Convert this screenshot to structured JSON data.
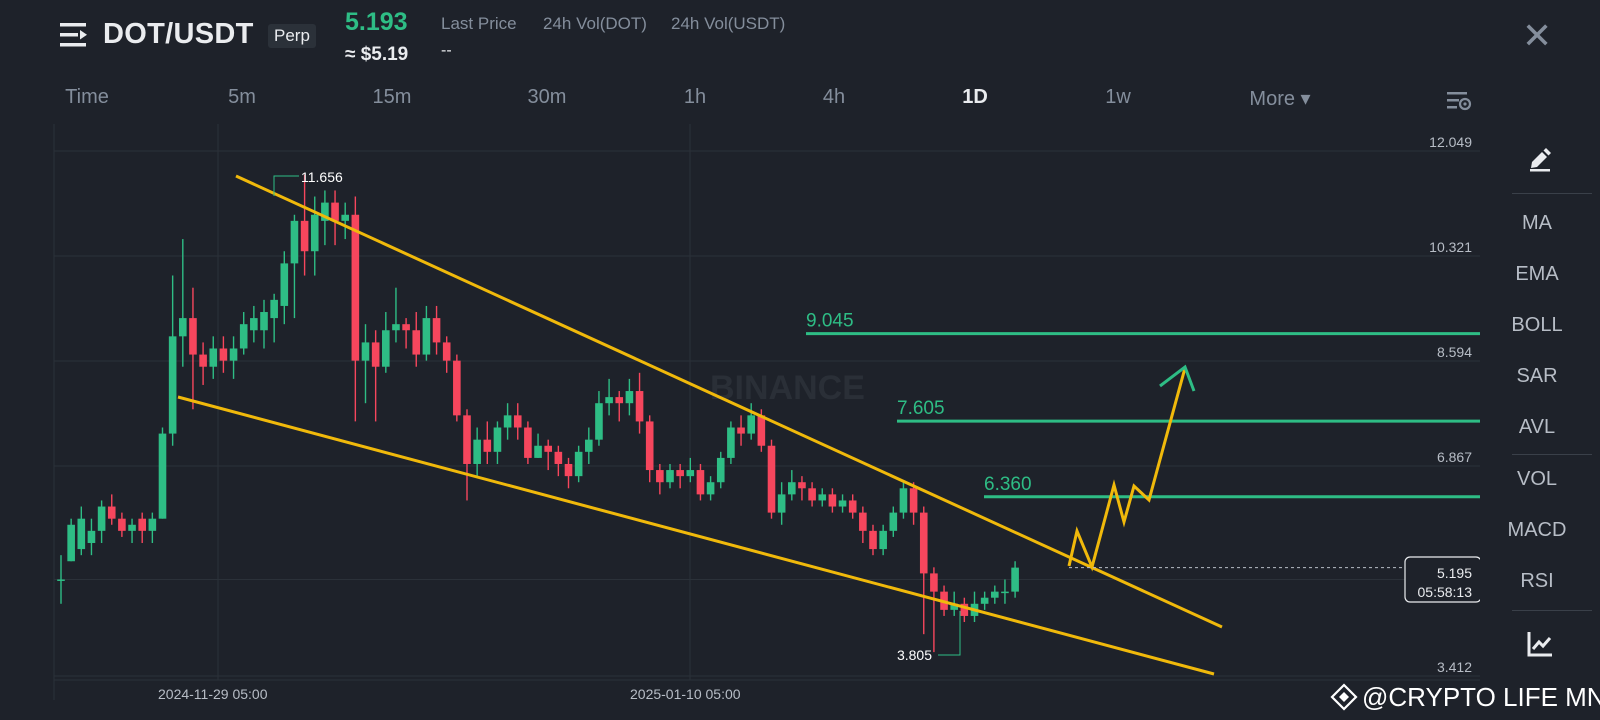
{
  "header": {
    "pair": "DOT/USDT",
    "contract": "Perp",
    "last_price": "5.193",
    "price_usd": "≈ $5.19",
    "stat_labels": [
      "Last Price",
      "24h Vol(DOT)",
      "24h Vol(USDT)"
    ],
    "stat_value": "--",
    "close_label": "✕"
  },
  "tabs": [
    {
      "label": "Time",
      "active": false
    },
    {
      "label": "5m",
      "active": false
    },
    {
      "label": "15m",
      "active": false
    },
    {
      "label": "30m",
      "active": false
    },
    {
      "label": "1h",
      "active": false
    },
    {
      "label": "4h",
      "active": false
    },
    {
      "label": "1D",
      "active": true
    },
    {
      "label": "1w",
      "active": false
    },
    {
      "label": "More ▾",
      "active": false
    }
  ],
  "sidebar": {
    "items": [
      "MA",
      "EMA",
      "BOLL",
      "SAR",
      "AVL",
      "VOL",
      "MACD",
      "RSI"
    ]
  },
  "chart": {
    "watermark": "BINANCE",
    "price_axis": [
      "12.049",
      "10.321",
      "8.594",
      "6.867",
      "3.412"
    ],
    "time_axis": [
      "2024-11-29 05:00",
      "2025-01-10 05:00"
    ],
    "high_label": "11.656",
    "low_label": "3.805",
    "current_price": "5.195",
    "countdown": "05:58:13",
    "levels": [
      "9.045",
      "7.605",
      "6.360"
    ],
    "colors": {
      "up": "#2ebd85",
      "down": "#f6465d",
      "trend": "#f0b90b",
      "level": "#2ebd85"
    }
  },
  "chart_data": {
    "type": "candlestick",
    "title": "DOT/USDT Perp 1D",
    "yaxis_ticks": [
      12.049,
      10.321,
      8.594,
      6.867,
      3.412
    ],
    "xaxis_ticks": [
      "2024-11-29 05:00",
      "2025-01-10 05:00"
    ],
    "candles_ohlc": [
      [
        5.0,
        5.0,
        4.6,
        5.4
      ],
      [
        5.3,
        5.9,
        5.3,
        6.0
      ],
      [
        5.5,
        6.0,
        5.4,
        6.2
      ],
      [
        5.6,
        5.8,
        5.4,
        6.0
      ],
      [
        5.8,
        6.2,
        5.6,
        6.3
      ],
      [
        6.2,
        6.0,
        5.9,
        6.4
      ],
      [
        6.0,
        5.8,
        5.7,
        6.1
      ],
      [
        5.8,
        5.9,
        5.6,
        6.0
      ],
      [
        6.0,
        5.8,
        5.6,
        6.1
      ],
      [
        5.8,
        6.0,
        5.6,
        6.1
      ],
      [
        6.0,
        7.4,
        6.0,
        7.5
      ],
      [
        7.4,
        9.0,
        7.2,
        10.0
      ],
      [
        9.0,
        9.3,
        8.5,
        10.6
      ],
      [
        9.3,
        8.7,
        7.8,
        9.8
      ],
      [
        8.7,
        8.5,
        8.2,
        8.9
      ],
      [
        8.5,
        8.8,
        8.3,
        9.0
      ],
      [
        8.8,
        8.6,
        8.4,
        9.0
      ],
      [
        8.6,
        8.8,
        8.3,
        9.0
      ],
      [
        8.8,
        9.2,
        8.7,
        9.4
      ],
      [
        9.1,
        9.3,
        8.9,
        9.5
      ],
      [
        9.1,
        9.4,
        8.8,
        9.6
      ],
      [
        9.3,
        9.6,
        8.9,
        9.7
      ],
      [
        9.5,
        10.2,
        9.2,
        10.4
      ],
      [
        10.2,
        10.9,
        9.3,
        11.0
      ],
      [
        10.9,
        10.4,
        10.0,
        11.66
      ],
      [
        10.4,
        11.0,
        10.0,
        11.3
      ],
      [
        10.9,
        11.2,
        10.5,
        11.4
      ],
      [
        11.2,
        10.9,
        10.5,
        11.4
      ],
      [
        10.9,
        11.0,
        10.6,
        11.2
      ],
      [
        11.0,
        8.6,
        7.6,
        11.3
      ],
      [
        8.6,
        8.9,
        7.9,
        9.2
      ],
      [
        8.9,
        8.5,
        7.6,
        9.1
      ],
      [
        8.5,
        9.1,
        8.4,
        9.4
      ],
      [
        9.1,
        9.2,
        8.9,
        9.8
      ],
      [
        9.2,
        9.1,
        8.8,
        9.3
      ],
      [
        9.1,
        8.7,
        8.5,
        9.4
      ],
      [
        8.7,
        9.3,
        8.6,
        9.5
      ],
      [
        9.3,
        8.9,
        8.7,
        9.5
      ],
      [
        8.9,
        8.6,
        8.4,
        9.0
      ],
      [
        8.6,
        7.7,
        7.6,
        8.7
      ],
      [
        7.7,
        6.9,
        6.3,
        7.8
      ],
      [
        6.9,
        7.3,
        6.7,
        7.5
      ],
      [
        7.3,
        7.1,
        6.9,
        7.6
      ],
      [
        7.1,
        7.5,
        6.9,
        7.6
      ],
      [
        7.5,
        7.7,
        7.3,
        7.9
      ],
      [
        7.7,
        7.5,
        7.3,
        7.9
      ],
      [
        7.5,
        7.0,
        6.9,
        7.6
      ],
      [
        7.0,
        7.2,
        7.0,
        7.4
      ],
      [
        7.2,
        7.1,
        6.8,
        7.3
      ],
      [
        7.1,
        6.9,
        6.7,
        7.2
      ],
      [
        6.9,
        6.7,
        6.5,
        7.0
      ],
      [
        6.7,
        7.1,
        6.6,
        7.2
      ],
      [
        7.1,
        7.3,
        6.9,
        7.5
      ],
      [
        7.3,
        7.9,
        7.2,
        8.1
      ],
      [
        7.9,
        8.0,
        7.7,
        8.3
      ],
      [
        8.0,
        7.9,
        7.6,
        8.1
      ],
      [
        7.9,
        8.1,
        7.7,
        8.3
      ],
      [
        8.1,
        7.6,
        7.4,
        8.4
      ],
      [
        7.6,
        6.8,
        6.6,
        7.7
      ],
      [
        6.8,
        6.6,
        6.4,
        6.9
      ],
      [
        6.6,
        6.8,
        6.5,
        6.9
      ],
      [
        6.8,
        6.7,
        6.5,
        6.9
      ],
      [
        6.7,
        6.8,
        6.6,
        7.0
      ],
      [
        6.8,
        6.4,
        6.3,
        6.9
      ],
      [
        6.4,
        6.6,
        6.3,
        6.7
      ],
      [
        6.6,
        7.0,
        6.5,
        7.1
      ],
      [
        7.0,
        7.5,
        6.9,
        7.6
      ],
      [
        7.5,
        7.4,
        7.2,
        7.7
      ],
      [
        7.4,
        7.7,
        7.3,
        7.9
      ],
      [
        7.7,
        7.2,
        7.1,
        7.8
      ],
      [
        7.2,
        6.1,
        6.0,
        7.3
      ],
      [
        6.1,
        6.4,
        5.9,
        6.6
      ],
      [
        6.4,
        6.6,
        6.3,
        6.8
      ],
      [
        6.6,
        6.5,
        6.3,
        6.7
      ],
      [
        6.5,
        6.3,
        6.2,
        6.6
      ],
      [
        6.3,
        6.4,
        6.2,
        6.5
      ],
      [
        6.4,
        6.2,
        6.1,
        6.5
      ],
      [
        6.2,
        6.3,
        6.1,
        6.4
      ],
      [
        6.3,
        6.1,
        6.0,
        6.4
      ],
      [
        6.1,
        5.8,
        5.6,
        6.2
      ],
      [
        5.8,
        5.5,
        5.4,
        5.9
      ],
      [
        5.5,
        5.8,
        5.4,
        5.9
      ],
      [
        5.8,
        6.1,
        5.7,
        6.2
      ],
      [
        6.1,
        6.5,
        6.0,
        6.6
      ],
      [
        6.5,
        6.1,
        5.9,
        6.6
      ],
      [
        6.1,
        5.1,
        4.1,
        6.2
      ],
      [
        5.1,
        4.8,
        3.805,
        5.2
      ],
      [
        4.8,
        4.5,
        4.4,
        4.9
      ],
      [
        4.5,
        4.6,
        4.4,
        4.8
      ],
      [
        4.6,
        4.4,
        4.3,
        4.7
      ],
      [
        4.4,
        4.6,
        4.3,
        4.8
      ],
      [
        4.6,
        4.7,
        4.5,
        4.8
      ],
      [
        4.7,
        4.8,
        4.6,
        4.9
      ],
      [
        4.8,
        4.8,
        4.6,
        5.0
      ],
      [
        4.8,
        5.195,
        4.7,
        5.3
      ]
    ],
    "current_price": 5.195,
    "horizontal_levels": [
      9.045,
      7.605,
      6.36
    ],
    "marked_high": 11.656,
    "marked_low": 3.805
  }
}
